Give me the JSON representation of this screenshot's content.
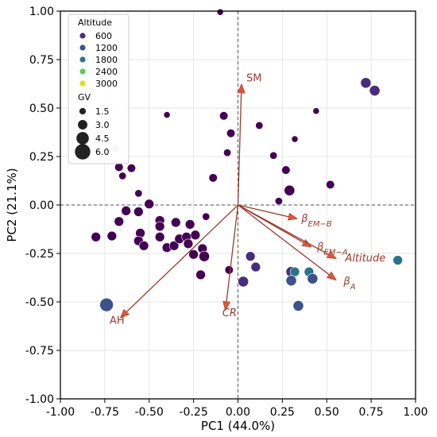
{
  "chart_data": {
    "type": "scatter",
    "xlabel": "PC1 (44.0%)",
    "ylabel": "PC2 (21.1%)",
    "xlim": [
      -1.0,
      1.0
    ],
    "ylim": [
      -1.0,
      1.0
    ],
    "xticks": [
      "-1.00",
      "-0.75",
      "-0.50",
      "-0.25",
      "0.00",
      "0.25",
      "0.50",
      "0.75",
      "1.00"
    ],
    "yticks": [
      "-1.00",
      "-0.75",
      "-0.50",
      "-0.25",
      "0.00",
      "0.25",
      "0.50",
      "0.75",
      "1.00"
    ],
    "grid": true,
    "reference_lines": [
      {
        "axis": "x",
        "value": 0
      },
      {
        "axis": "y",
        "value": 0
      }
    ],
    "legend": {
      "placement": "top-left",
      "hue_title": "Altitude",
      "hue_entries": [
        {
          "label": "600",
          "color": "#472d7b"
        },
        {
          "label": "1200",
          "color": "#3b528b"
        },
        {
          "label": "1800",
          "color": "#2c728e"
        },
        {
          "label": "2400",
          "color": "#5ec962"
        },
        {
          "label": "3000",
          "color": "#d8e219"
        }
      ],
      "size_title": "GV",
      "size_entries": [
        {
          "label": "1.5",
          "value": 1.5
        },
        {
          "label": "3.0",
          "value": 3.0
        },
        {
          "label": "4.5",
          "value": 4.5
        },
        {
          "label": "6.0",
          "value": 6.0
        }
      ]
    },
    "points": [
      {
        "x": -0.8,
        "y": -0.165,
        "size": 3.0,
        "color": "#440154"
      },
      {
        "x": -0.71,
        "y": -0.16,
        "size": 3.0,
        "color": "#440154"
      },
      {
        "x": -0.67,
        "y": -0.085,
        "size": 3.0,
        "color": "#440154"
      },
      {
        "x": -0.63,
        "y": -0.03,
        "size": 3.0,
        "color": "#440154"
      },
      {
        "x": -0.67,
        "y": 0.195,
        "size": 2.5,
        "color": "#440154"
      },
      {
        "x": -0.6,
        "y": 0.19,
        "size": 2.5,
        "color": "#440154"
      },
      {
        "x": -0.65,
        "y": 0.15,
        "size": 2.0,
        "color": "#440154"
      },
      {
        "x": -0.69,
        "y": 0.29,
        "size": 2.0,
        "color": "#c8b8d0"
      },
      {
        "x": -0.56,
        "y": 0.06,
        "size": 2.0,
        "color": "#440154"
      },
      {
        "x": -0.5,
        "y": 0.005,
        "size": 3.0,
        "color": "#440154"
      },
      {
        "x": -0.56,
        "y": -0.035,
        "size": 3.0,
        "color": "#440154"
      },
      {
        "x": -0.55,
        "y": -0.145,
        "size": 3.0,
        "color": "#440154"
      },
      {
        "x": -0.56,
        "y": -0.185,
        "size": 3.0,
        "color": "#440154"
      },
      {
        "x": -0.53,
        "y": -0.21,
        "size": 3.0,
        "color": "#440154"
      },
      {
        "x": -0.44,
        "y": -0.08,
        "size": 3.0,
        "color": "#440154"
      },
      {
        "x": -0.44,
        "y": -0.11,
        "size": 3.0,
        "color": "#440154"
      },
      {
        "x": -0.44,
        "y": -0.165,
        "size": 3.0,
        "color": "#440154"
      },
      {
        "x": -0.4,
        "y": -0.22,
        "size": 3.0,
        "color": "#440154"
      },
      {
        "x": -0.36,
        "y": -0.21,
        "size": 3.0,
        "color": "#440154"
      },
      {
        "x": -0.35,
        "y": -0.09,
        "size": 3.0,
        "color": "#440154"
      },
      {
        "x": -0.33,
        "y": -0.175,
        "size": 3.0,
        "color": "#440154"
      },
      {
        "x": -0.29,
        "y": -0.165,
        "size": 3.0,
        "color": "#440154"
      },
      {
        "x": -0.28,
        "y": -0.2,
        "size": 3.0,
        "color": "#440154"
      },
      {
        "x": -0.27,
        "y": -0.1,
        "size": 3.0,
        "color": "#440154"
      },
      {
        "x": -0.25,
        "y": -0.255,
        "size": 3.0,
        "color": "#440154"
      },
      {
        "x": -0.24,
        "y": -0.155,
        "size": 3.0,
        "color": "#440154"
      },
      {
        "x": -0.2,
        "y": -0.225,
        "size": 3.0,
        "color": "#440154"
      },
      {
        "x": -0.19,
        "y": -0.265,
        "size": 3.5,
        "color": "#440154"
      },
      {
        "x": -0.21,
        "y": -0.36,
        "size": 3.0,
        "color": "#440154"
      },
      {
        "x": -0.4,
        "y": 0.465,
        "size": 1.5,
        "color": "#440154"
      },
      {
        "x": -0.18,
        "y": -0.06,
        "size": 2.0,
        "color": "#440154"
      },
      {
        "x": -0.14,
        "y": 0.14,
        "size": 2.5,
        "color": "#440154"
      },
      {
        "x": -0.08,
        "y": 0.46,
        "size": 2.5,
        "color": "#440154"
      },
      {
        "x": -0.04,
        "y": 0.37,
        "size": 2.5,
        "color": "#440154"
      },
      {
        "x": -0.06,
        "y": 0.27,
        "size": 2.0,
        "color": "#440154"
      },
      {
        "x": -0.05,
        "y": -0.335,
        "size": 2.5,
        "color": "#440154"
      },
      {
        "x": -0.1,
        "y": 0.995,
        "size": 1.5,
        "color": "#440154"
      },
      {
        "x": 0.12,
        "y": 0.41,
        "size": 2.0,
        "color": "#440154"
      },
      {
        "x": 0.2,
        "y": 0.255,
        "size": 2.0,
        "color": "#440154"
      },
      {
        "x": 0.27,
        "y": 0.18,
        "size": 2.5,
        "color": "#440154"
      },
      {
        "x": 0.32,
        "y": 0.34,
        "size": 1.5,
        "color": "#440154"
      },
      {
        "x": 0.29,
        "y": 0.075,
        "size": 3.5,
        "color": "#440154"
      },
      {
        "x": 0.23,
        "y": 0.02,
        "size": 2.0,
        "color": "#440154"
      },
      {
        "x": 0.44,
        "y": 0.485,
        "size": 1.5,
        "color": "#440154"
      },
      {
        "x": 0.52,
        "y": 0.105,
        "size": 2.5,
        "color": "#440154"
      },
      {
        "x": 0.72,
        "y": 0.63,
        "size": 3.5,
        "color": "#472d7b"
      },
      {
        "x": 0.77,
        "y": 0.59,
        "size": 3.5,
        "color": "#472d7b"
      },
      {
        "x": 0.07,
        "y": -0.265,
        "size": 3.0,
        "color": "#472d7b"
      },
      {
        "x": 0.1,
        "y": -0.32,
        "size": 3.0,
        "color": "#472d7b"
      },
      {
        "x": 0.03,
        "y": -0.395,
        "size": 3.5,
        "color": "#472d7b"
      },
      {
        "x": 0.3,
        "y": -0.345,
        "size": 3.5,
        "color": "#472d7b"
      },
      {
        "x": 0.32,
        "y": -0.345,
        "size": 3.0,
        "color": "#2c728e"
      },
      {
        "x": 0.3,
        "y": -0.39,
        "size": 3.5,
        "color": "#3b528b"
      },
      {
        "x": 0.34,
        "y": -0.52,
        "size": 3.5,
        "color": "#3b528b"
      },
      {
        "x": 0.4,
        "y": -0.345,
        "size": 3.0,
        "color": "#2c728e"
      },
      {
        "x": 0.42,
        "y": -0.38,
        "size": 3.5,
        "color": "#3b528b"
      },
      {
        "x": 0.9,
        "y": -0.285,
        "size": 3.0,
        "color": "#2c728e"
      },
      {
        "x": -0.74,
        "y": -0.515,
        "size": 5.0,
        "color": "#3b528b"
      }
    ],
    "loadings": [
      {
        "label": "SM",
        "x": 0.02,
        "y": 0.62,
        "italic": false
      },
      {
        "label": "β<sub>EM−B</sub>",
        "text": "βEM−B",
        "x": 0.33,
        "y": -0.07,
        "italic": true
      },
      {
        "label": "βEM−A",
        "x": 0.41,
        "y": -0.215,
        "italic": true
      },
      {
        "label": "Altitude",
        "x": 0.55,
        "y": -0.275,
        "italic": true
      },
      {
        "label": "βA",
        "x": 0.55,
        "y": -0.385,
        "italic": true
      },
      {
        "label": "CR",
        "x": -0.07,
        "y": -0.54,
        "italic": true
      },
      {
        "label": "AH",
        "x": -0.66,
        "y": -0.58,
        "italic": false
      }
    ],
    "loading_color": "#9e3a2c"
  }
}
